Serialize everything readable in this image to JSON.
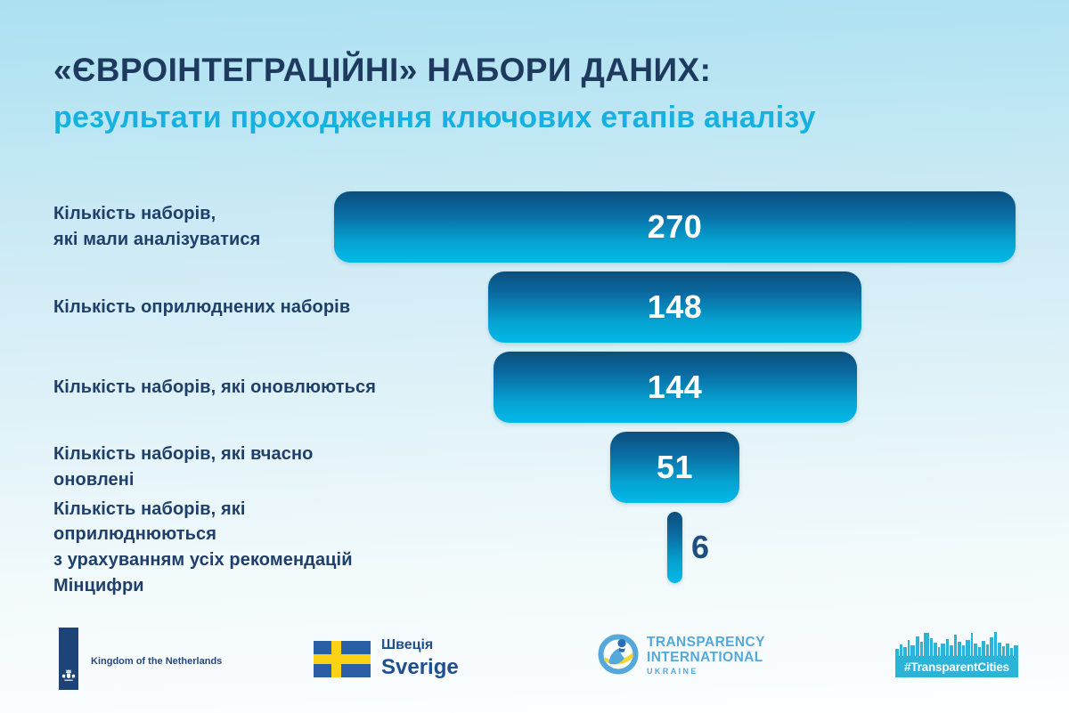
{
  "header": {
    "title": "«ЄВРОІНТЕГРАЦІЙНІ» НАБОРИ ДАНИХ:",
    "subtitle": "результати проходження ключових етапів аналізу"
  },
  "chart_data": {
    "type": "bar",
    "variant": "horizontal-centered-funnel",
    "title": "«ЄВРОІНТЕГРАЦІЙНІ» НАБОРИ ДАНИХ: результати проходження ключових етапів аналізу",
    "max_value": 270,
    "rows": [
      {
        "label": "Кількість наборів,\nякі мали аналізуватися",
        "value": 270
      },
      {
        "label": "Кількість оприлюднених наборів",
        "value": 148
      },
      {
        "label": "Кількість наборів, які оновлюються",
        "value": 144
      },
      {
        "label": "Кількість наборів, які вчасно оновлені",
        "value": 51
      },
      {
        "label": "Кількість наборів, які оприлюднюються\nз урахуванням усіх рекомендацій Мінцифри",
        "value": 6,
        "value_outside": true
      }
    ],
    "layout_hints": {
      "bars_centered": true,
      "value_labels": "inside bars, white; last value outside in navy",
      "bar_gradient": [
        "#0c4e7d",
        "#02b9e8"
      ]
    }
  },
  "footer": {
    "netherlands": {
      "label": "Kingdom of the Netherlands"
    },
    "sweden": {
      "name_uk": "Швеція",
      "name_sv": "Sverige"
    },
    "transparency_international": {
      "line1": "TRANSPARENCY",
      "line2": "INTERNATIONAL",
      "country": "UKRAINE"
    },
    "transparent_cities": {
      "label": "#TransparentCities"
    }
  },
  "colors": {
    "background_top": "#abe1f1",
    "background_bottom": "#fdfeff",
    "title_navy": "#1e3a5f",
    "accent_cyan": "#16b1e1",
    "label_navy": "#1f3f6b",
    "bar_gradient_top": "#0c4e7d",
    "bar_gradient_bottom": "#02b9e8",
    "bar_value_white": "#ffffff",
    "value_outside_navy": "#1d4e7f",
    "nl_navy": "#1c4479",
    "sweden_blue": "#2a5fa5",
    "sweden_yellow": "#fcd116",
    "sweden_text": "#1d4f91",
    "ti_blue": "#54a9da",
    "ti_yellow": "#f5d631",
    "tc_cyan": "#2bb3da"
  }
}
